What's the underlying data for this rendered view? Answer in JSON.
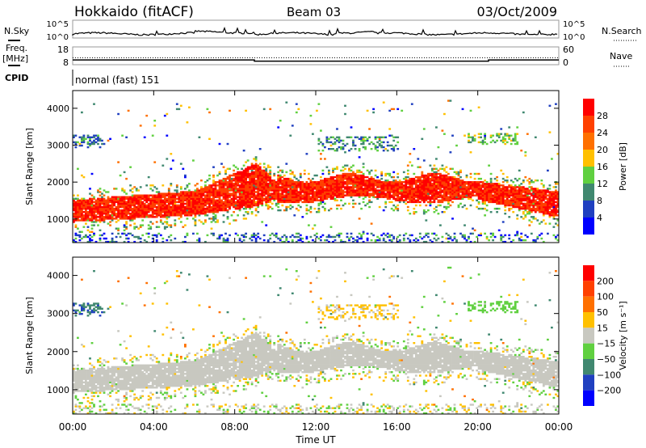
{
  "header": {
    "title": "Hokkaido (fitACF)",
    "beam": "Beam 03",
    "date": "03/Oct/2009"
  },
  "status_panels": {
    "nsky_label": "N.Sky",
    "nsearch_label": "N.Search",
    "noise_ticks": [
      "10^5",
      "10^0"
    ],
    "freq_label": "Freq.",
    "freq_unit": "[MHz]",
    "freq_ticks": [
      "18",
      "8"
    ],
    "nave_label": "Nave",
    "nave_ticks": [
      "60",
      "0"
    ],
    "cpid_label": "CPID",
    "cpid_value": "normal (fast) 151"
  },
  "chart_data": [
    {
      "type": "heatmap",
      "parameter": "Power",
      "colorbar_label": "Power [dB]",
      "colorbar_ticks": [
        "28",
        "24",
        "20",
        "16",
        "12",
        "8",
        "4"
      ],
      "colors": [
        "#0000ff",
        "#2040c0",
        "#408870",
        "#60d040",
        "#ffc000",
        "#ff7000",
        "#ff4000",
        "#ff0000"
      ],
      "xlabel": "Time UT",
      "ylabel": "Slant Range [km]",
      "xlim": [
        0,
        24
      ],
      "ylim": [
        360,
        4480
      ],
      "xticks": [
        "00:00",
        "04:00",
        "08:00",
        "12:00",
        "16:00",
        "20:00",
        "00:00"
      ],
      "yticks": [
        "1000",
        "2000",
        "3000",
        "4000"
      ]
    },
    {
      "type": "heatmap",
      "parameter": "Velocity",
      "colorbar_label": "Velocity [m s⁻¹]",
      "colorbar_ticks": [
        "200",
        "100",
        "50",
        "15",
        "-15",
        "-50",
        "-100",
        "-200"
      ],
      "colors": [
        "#0000ff",
        "#2040c0",
        "#408870",
        "#60d040",
        "#c8c8c0",
        "#ffc000",
        "#ff7000",
        "#ff4000",
        "#ff0000"
      ],
      "xlabel": "Time UT",
      "ylabel": "Slant Range [km]",
      "xlim": [
        0,
        24
      ],
      "ylim": [
        360,
        4480
      ],
      "xticks": [
        "00:00",
        "04:00",
        "08:00",
        "12:00",
        "16:00",
        "20:00",
        "00:00"
      ],
      "yticks": [
        "1000",
        "2000",
        "3000",
        "4000"
      ]
    }
  ],
  "echo_regions": [
    {
      "name": "main band",
      "t": [
        0,
        24
      ],
      "power_db": 28,
      "velocity": 0
    },
    {
      "name": "near-range ground",
      "t": [
        0,
        24
      ],
      "range": [
        380,
        600
      ],
      "power_db": 8,
      "velocity": 0
    },
    {
      "name": "far patch A",
      "t": [
        0,
        1.5
      ],
      "range": [
        2900,
        3300
      ],
      "power_db": 10,
      "velocity": 80
    },
    {
      "name": "far patch B",
      "t": [
        12,
        16
      ],
      "range": [
        2800,
        3200
      ],
      "power_db": 10,
      "velocity": -30
    },
    {
      "name": "far patch C",
      "t": [
        19.5,
        22
      ],
      "range": [
        3000,
        3300
      ],
      "power_db": 14,
      "velocity": 30
    }
  ],
  "freq_mhz": 11,
  "nave": 25
}
